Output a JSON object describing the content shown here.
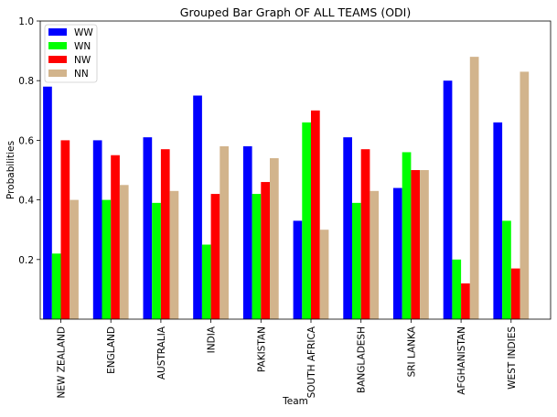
{
  "chart_data": {
    "type": "bar",
    "title": "Grouped Bar Graph OF ALL TEAMS (ODI)",
    "xlabel": "Team",
    "ylabel": "Probabilities",
    "ylim": [
      0,
      1.0
    ],
    "yticks": [
      "0.2",
      "0.4",
      "0.6",
      "0.8",
      "1.0"
    ],
    "categories": [
      "NEW ZEALAND",
      "ENGLAND",
      "AUSTRALIA",
      "INDIA",
      "PAKISTAN",
      "SOUTH AFRICA",
      "BANGLADESH",
      "SRI LANKA",
      "AFGHANISTAN",
      "WEST INDIES"
    ],
    "series": [
      {
        "name": "WW",
        "color": "#0000ff",
        "values": [
          0.78,
          0.6,
          0.61,
          0.75,
          0.58,
          0.33,
          0.61,
          0.44,
          0.8,
          0.66
        ]
      },
      {
        "name": "WN",
        "color": "#00ff00",
        "values": [
          0.22,
          0.4,
          0.39,
          0.25,
          0.42,
          0.66,
          0.39,
          0.56,
          0.2,
          0.33
        ]
      },
      {
        "name": "NW",
        "color": "#ff0000",
        "values": [
          0.6,
          0.55,
          0.57,
          0.42,
          0.46,
          0.7,
          0.57,
          0.5,
          0.12,
          0.17
        ]
      },
      {
        "name": "NN",
        "color": "#d2b48c",
        "values": [
          0.4,
          0.45,
          0.43,
          0.58,
          0.54,
          0.3,
          0.43,
          0.5,
          0.88,
          0.83
        ]
      }
    ],
    "grid": false,
    "legend_position": "top-left"
  }
}
